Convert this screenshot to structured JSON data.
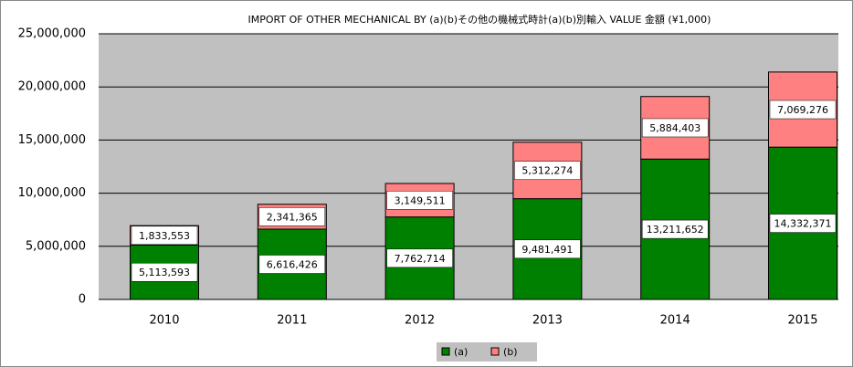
{
  "chart_data": {
    "type": "stacked_bar",
    "title": "IMPORT OF OTHER MECHANICAL BY (a)(b)その他の機械式時計(a)(b)別輸入  VALUE 金額 (¥1,000)",
    "categories": [
      "2010",
      "2011",
      "2012",
      "2013",
      "2014",
      "2015"
    ],
    "series": [
      {
        "name": "(a)",
        "color": "#008000",
        "values": [
          5113593,
          6616426,
          7762714,
          9481491,
          13211652,
          14332371
        ],
        "value_labels": [
          "5,113,593",
          "6,616,426",
          "7,762,714",
          "9,481,491",
          "13,211,652",
          "14,332,371"
        ]
      },
      {
        "name": "(b)",
        "color": "#ff8080",
        "values": [
          1833553,
          2341365,
          3149511,
          5312274,
          5884403,
          7069276
        ],
        "value_labels": [
          "1,833,553",
          "2,341,365",
          "3,149,511",
          "5,312,274",
          "5,884,403",
          "7,069,276"
        ]
      }
    ],
    "ylim": [
      0,
      25000000
    ],
    "yticks": [
      0,
      {
        "value": 5000000,
        "label": "5,000,000"
      },
      {
        "value": 10000000,
        "label": "10,000,000"
      },
      {
        "value": 15000000,
        "label": "15,000,000"
      },
      {
        "value": 20000000,
        "label": "20,000,000"
      },
      {
        "value": 25000000,
        "label": "25,000,000"
      }
    ],
    "grid": true,
    "legend": "bottom"
  }
}
